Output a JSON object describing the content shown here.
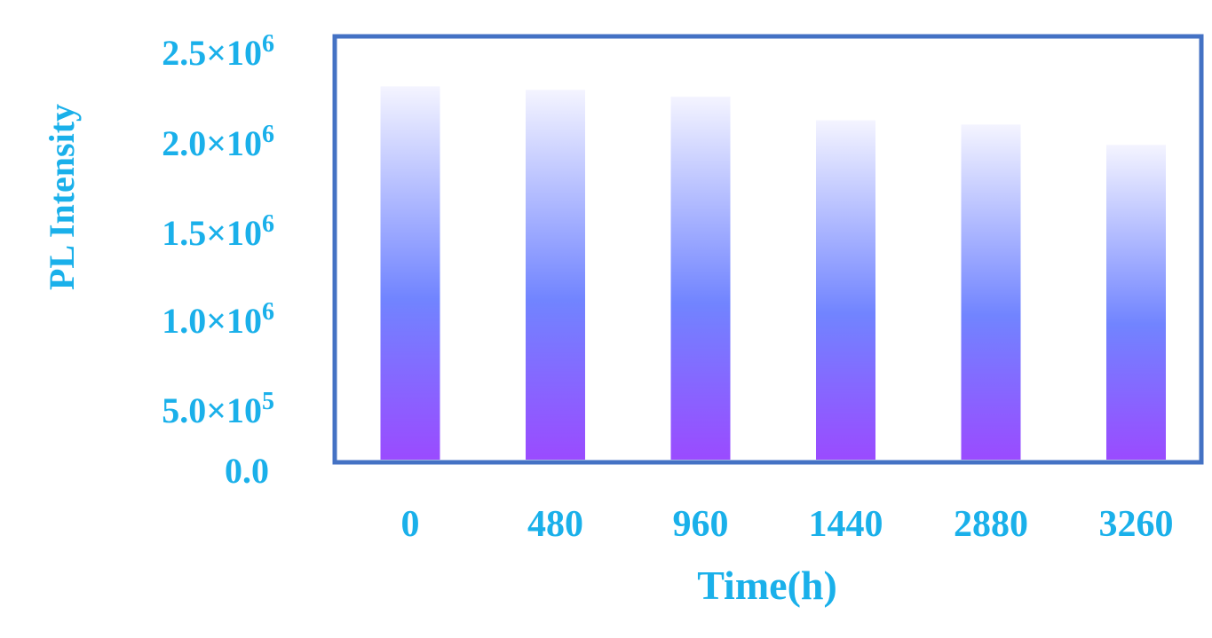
{
  "chart_data": {
    "type": "bar",
    "title": "",
    "xlabel": "Time(h)",
    "ylabel": "PL Intensity",
    "categories": [
      "0",
      "480",
      "960",
      "1440",
      "2880",
      "3260"
    ],
    "values": [
      2200000,
      2180000,
      2140000,
      2000000,
      1975000,
      1855000
    ],
    "ylim": [
      0,
      2500000
    ],
    "y_ticks": [
      {
        "value": 0,
        "mantissa": "0.0",
        "exponent": ""
      },
      {
        "value": 500000,
        "mantissa": "5.0×10",
        "exponent": "5"
      },
      {
        "value": 1000000,
        "mantissa": "1.0×10",
        "exponent": "6"
      },
      {
        "value": 1500000,
        "mantissa": "1.5×10",
        "exponent": "6"
      },
      {
        "value": 2000000,
        "mantissa": "2.0×10",
        "exponent": "6"
      },
      {
        "value": 2500000,
        "mantissa": "2.5×10",
        "exponent": "6"
      }
    ],
    "grid": false,
    "legend": "none",
    "colors": {
      "label": "#1ab0ea",
      "frame": "#4472c4",
      "bar_top": "#f4f4ff",
      "bar_mid": "#7184ff",
      "bar_bottom": "#9a4bff"
    }
  }
}
